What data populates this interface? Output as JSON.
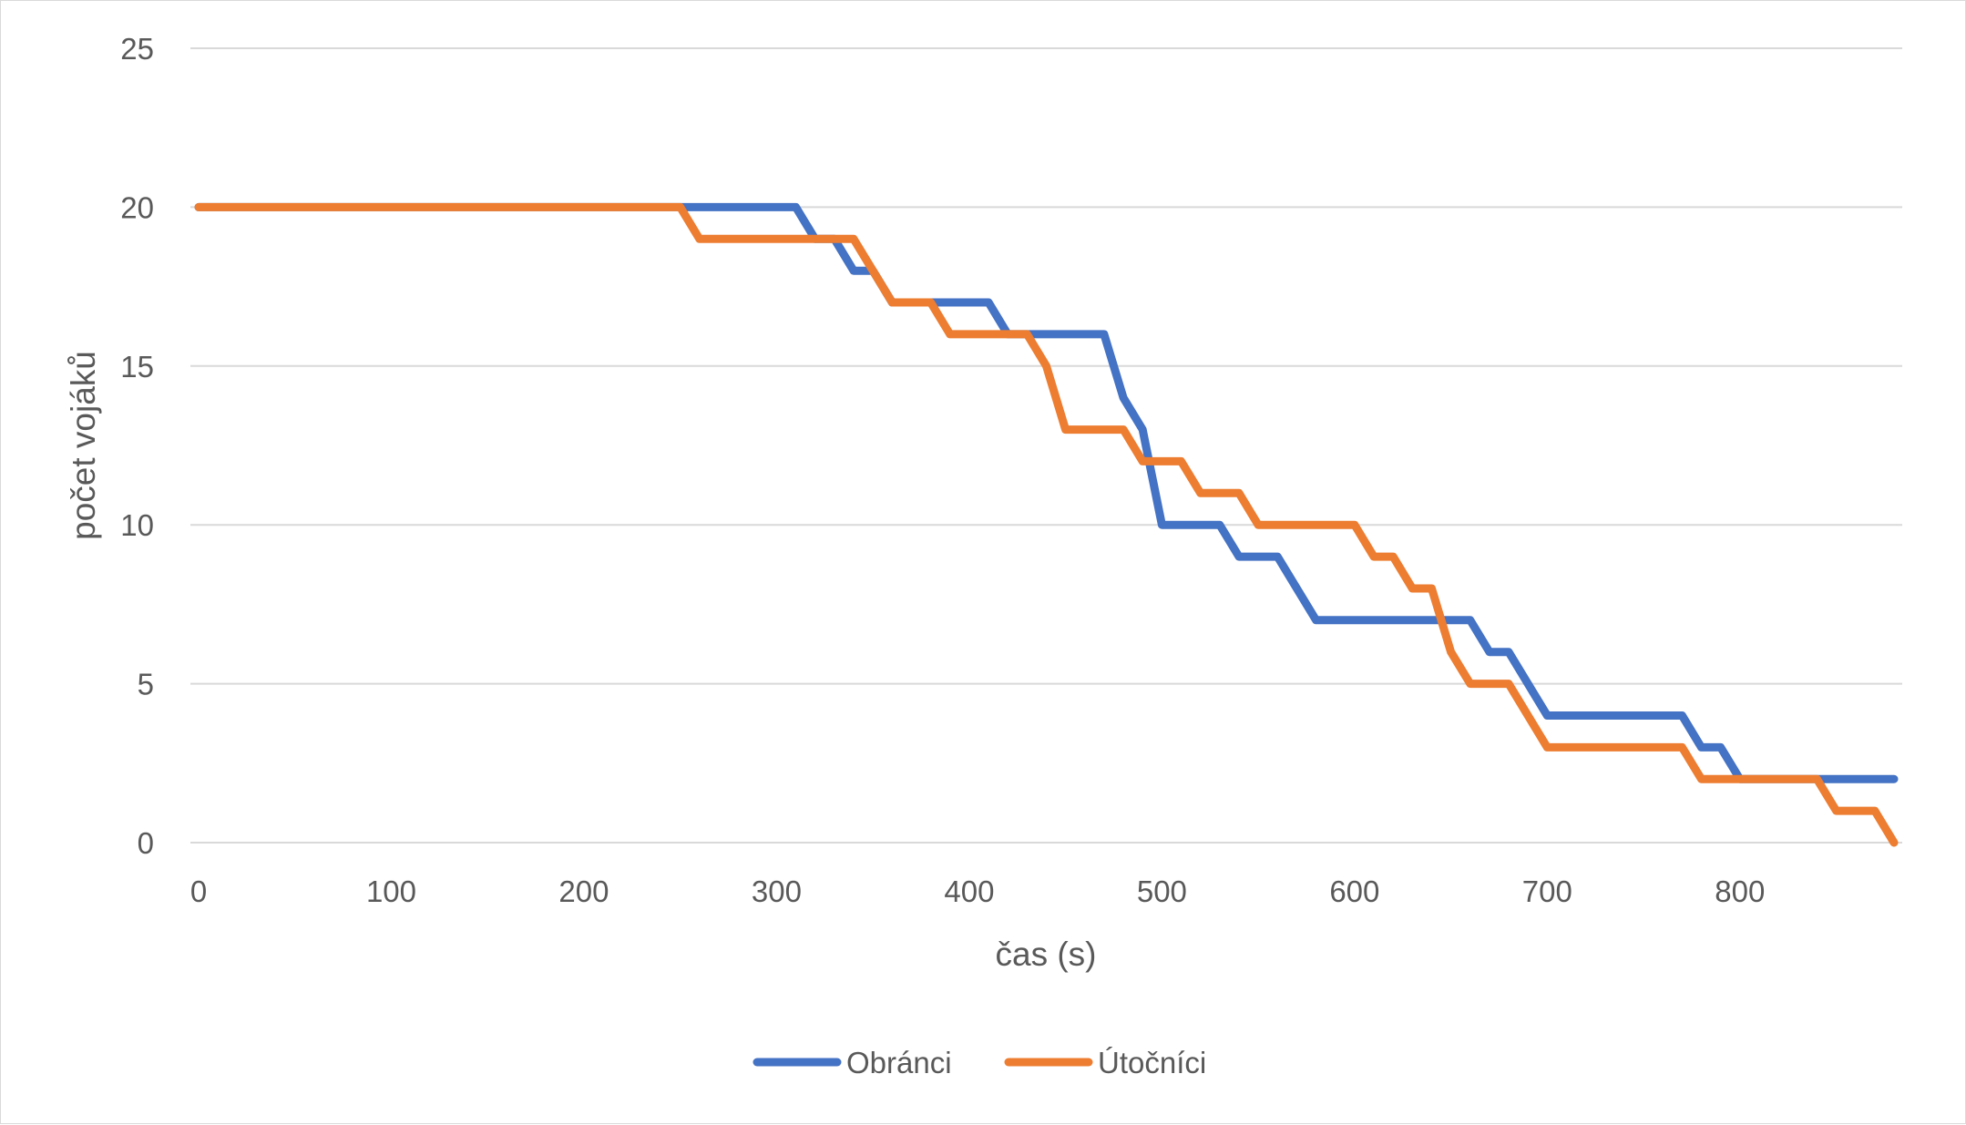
{
  "chart_data": {
    "type": "line",
    "title": "",
    "xlabel": "čas (s)",
    "ylabel": "počet vojáků",
    "xlim": [
      0,
      880
    ],
    "ylim": [
      0,
      25
    ],
    "x_ticks": [
      "0",
      "100",
      "200",
      "300",
      "400",
      "500",
      "600",
      "700",
      "800"
    ],
    "y_ticks": [
      "0",
      "5",
      "10",
      "15",
      "20",
      "25"
    ],
    "grid": "horizontal",
    "legend_position": "bottom",
    "series": [
      {
        "name": "Obránci",
        "color": "#4472C4",
        "points": [
          [
            0,
            20
          ],
          [
            250,
            20
          ],
          [
            310,
            20
          ],
          [
            320,
            19
          ],
          [
            330,
            19
          ],
          [
            340,
            18
          ],
          [
            350,
            18
          ],
          [
            360,
            17
          ],
          [
            410,
            17
          ],
          [
            420,
            16
          ],
          [
            470,
            16
          ],
          [
            480,
            14
          ],
          [
            490,
            13
          ],
          [
            500,
            10
          ],
          [
            530,
            10
          ],
          [
            540,
            9
          ],
          [
            560,
            9
          ],
          [
            580,
            7
          ],
          [
            660,
            7
          ],
          [
            670,
            6
          ],
          [
            680,
            6
          ],
          [
            700,
            4
          ],
          [
            770,
            4
          ],
          [
            780,
            3
          ],
          [
            790,
            3
          ],
          [
            800,
            2
          ],
          [
            880,
            2
          ]
        ]
      },
      {
        "name": "Útočníci",
        "color": "#ED7D31",
        "points": [
          [
            0,
            20
          ],
          [
            250,
            20
          ],
          [
            260,
            19
          ],
          [
            340,
            19
          ],
          [
            360,
            17
          ],
          [
            380,
            17
          ],
          [
            390,
            16
          ],
          [
            430,
            16
          ],
          [
            440,
            15
          ],
          [
            450,
            13
          ],
          [
            480,
            13
          ],
          [
            490,
            12
          ],
          [
            510,
            12
          ],
          [
            520,
            11
          ],
          [
            540,
            11
          ],
          [
            550,
            10
          ],
          [
            600,
            10
          ],
          [
            610,
            9
          ],
          [
            620,
            9
          ],
          [
            630,
            8
          ],
          [
            640,
            8
          ],
          [
            650,
            6
          ],
          [
            660,
            5
          ],
          [
            680,
            5
          ],
          [
            700,
            3
          ],
          [
            770,
            3
          ],
          [
            780,
            2
          ],
          [
            840,
            2
          ],
          [
            850,
            1
          ],
          [
            870,
            1
          ],
          [
            880,
            0
          ]
        ]
      }
    ]
  }
}
